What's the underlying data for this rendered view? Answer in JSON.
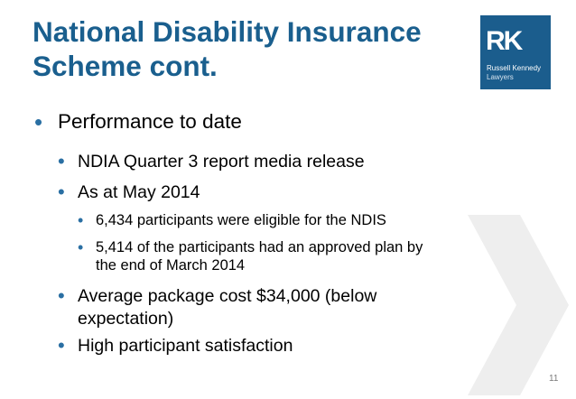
{
  "slide": {
    "title_lines": [
      "National Disability Insurance",
      "Scheme cont."
    ],
    "logo": {
      "mark": "RK",
      "name": "Russell Kennedy",
      "sub": "Lawyers"
    },
    "bullets": [
      {
        "text": "Performance to date"
      },
      {
        "text": "NDIA Quarter 3 report media release"
      },
      {
        "text": "As at May 2014"
      },
      {
        "text": "6,434 participants were eligible for the NDIS"
      },
      {
        "lines": [
          "5,414 of the participants had an approved plan by",
          "the end of March 2014"
        ]
      },
      {
        "lines": [
          "Average package cost $34,000 (below",
          "expectation)"
        ]
      },
      {
        "text": "High participant satisfaction"
      }
    ],
    "page_number": "11",
    "colors": {
      "title": "#1a5f8e",
      "logo_bg": "#1b5d8d",
      "bullet": "#2a6fa3",
      "chevron": "#eeeeee"
    }
  }
}
